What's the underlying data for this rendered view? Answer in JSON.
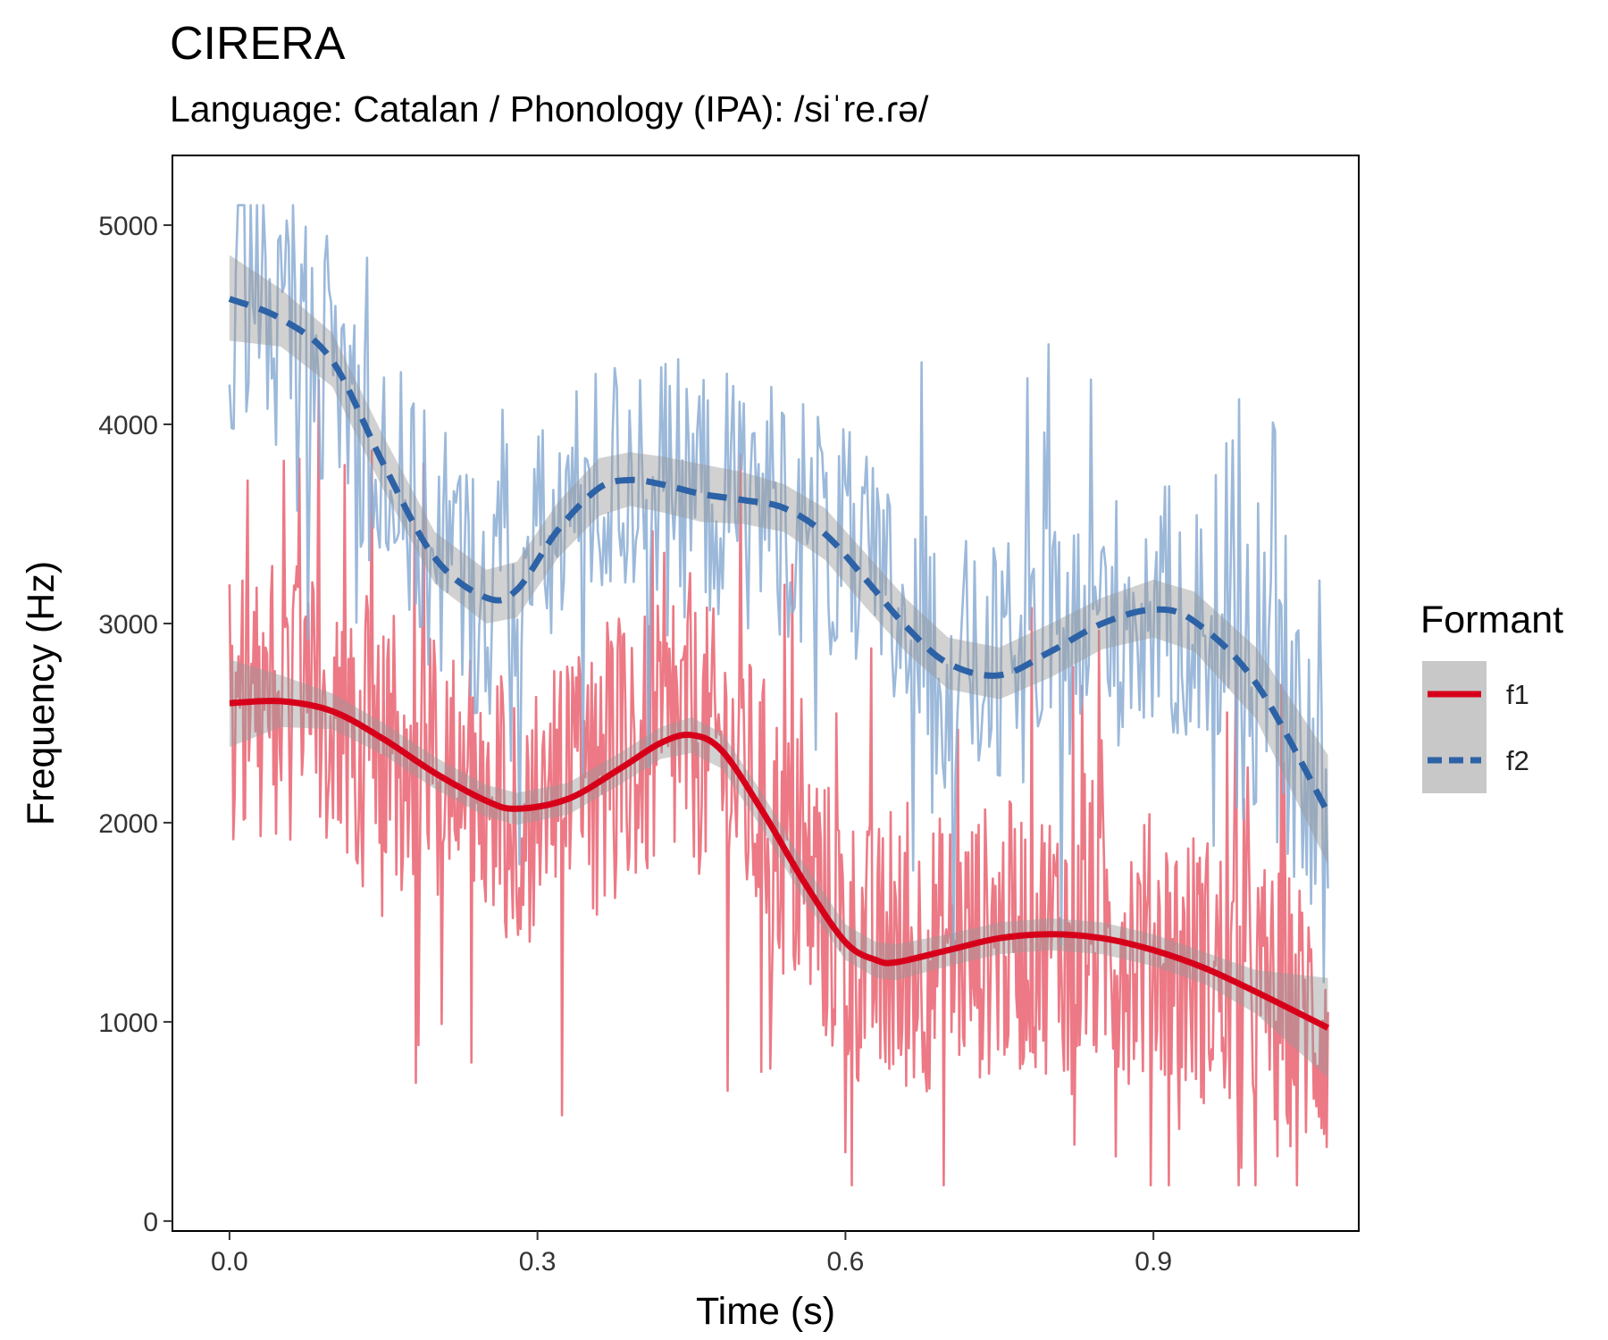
{
  "chart_data": {
    "type": "line",
    "title": "CIRERA",
    "subtitle": "Language: Catalan / Phonology (IPA): /siˈre.ɾə/",
    "xlabel": "Time (s)",
    "ylabel": "Frequency (Hz)",
    "xlim": [
      -0.0556,
      1.1
    ],
    "ylim": [
      -50,
      5350
    ],
    "x_ticks": [
      0.0,
      0.3,
      0.6,
      0.9
    ],
    "x_tick_labels": [
      "0.0",
      "0.3",
      "0.6",
      "0.9"
    ],
    "y_ticks": [
      0,
      1000,
      2000,
      3000,
      4000,
      5000
    ],
    "y_tick_labels": [
      "0",
      "1000",
      "2000",
      "3000",
      "4000",
      "5000"
    ],
    "grid": false,
    "legend": {
      "title": "Formant",
      "position": "right",
      "entries": [
        "f1",
        "f2"
      ]
    },
    "series": [
      {
        "name": "f1",
        "color": "#d7001a",
        "raw_color": "#ea6a78",
        "line_style": "solid",
        "smooth": {
          "x": [
            0.0,
            0.05,
            0.1,
            0.15,
            0.2,
            0.25,
            0.28,
            0.33,
            0.38,
            0.42,
            0.45,
            0.48,
            0.52,
            0.56,
            0.6,
            0.63,
            0.65,
            0.7,
            0.75,
            0.8,
            0.85,
            0.9,
            0.95,
            1.0,
            1.07
          ],
          "y": [
            2600,
            2610,
            2560,
            2420,
            2250,
            2110,
            2070,
            2120,
            2270,
            2400,
            2440,
            2360,
            2050,
            1700,
            1400,
            1310,
            1300,
            1360,
            1420,
            1440,
            1420,
            1360,
            1270,
            1150,
            970
          ]
        },
        "band": {
          "x": [
            0.0,
            0.05,
            0.1,
            0.15,
            0.2,
            0.25,
            0.28,
            0.33,
            0.38,
            0.42,
            0.45,
            0.48,
            0.52,
            0.56,
            0.6,
            0.63,
            0.65,
            0.7,
            0.75,
            0.8,
            0.85,
            0.9,
            0.95,
            1.0,
            1.07
          ],
          "lower": [
            2380,
            2480,
            2470,
            2340,
            2170,
            2030,
            1990,
            2040,
            2190,
            2320,
            2350,
            2270,
            1960,
            1610,
            1310,
            1220,
            1210,
            1280,
            1340,
            1360,
            1340,
            1280,
            1190,
            1040,
            720
          ],
          "upper": [
            2820,
            2740,
            2650,
            2500,
            2330,
            2190,
            2150,
            2200,
            2350,
            2480,
            2530,
            2450,
            2140,
            1790,
            1490,
            1400,
            1390,
            1440,
            1500,
            1520,
            1500,
            1440,
            1350,
            1260,
            1220
          ]
        },
        "raw": {
          "x_start": 0.0,
          "x_end": 1.07,
          "n": 850,
          "spread": 700,
          "min": 180,
          "max": 4450
        }
      },
      {
        "name": "f2",
        "color": "#2d62a6",
        "raw_color": "#8badd3",
        "line_style": "dashed",
        "smooth": {
          "x": [
            0.0,
            0.05,
            0.1,
            0.15,
            0.2,
            0.25,
            0.28,
            0.32,
            0.36,
            0.39,
            0.42,
            0.46,
            0.5,
            0.54,
            0.58,
            0.62,
            0.66,
            0.7,
            0.75,
            0.8,
            0.85,
            0.9,
            0.94,
            1.0,
            1.07
          ],
          "y": [
            4630,
            4530,
            4320,
            3800,
            3330,
            3130,
            3170,
            3470,
            3680,
            3720,
            3700,
            3650,
            3620,
            3580,
            3450,
            3220,
            2980,
            2800,
            2740,
            2860,
            3000,
            3070,
            3010,
            2700,
            2050
          ]
        },
        "band": {
          "x": [
            0.0,
            0.05,
            0.1,
            0.15,
            0.2,
            0.25,
            0.28,
            0.32,
            0.36,
            0.39,
            0.42,
            0.46,
            0.5,
            0.54,
            0.58,
            0.62,
            0.66,
            0.7,
            0.75,
            0.8,
            0.85,
            0.9,
            0.94,
            1.0,
            1.07
          ],
          "lower": [
            4420,
            4390,
            4190,
            3670,
            3200,
            3000,
            3030,
            3330,
            3540,
            3590,
            3560,
            3510,
            3500,
            3460,
            3320,
            3080,
            2850,
            2670,
            2620,
            2730,
            2870,
            2930,
            2860,
            2520,
            1790
          ],
          "upper": [
            4850,
            4680,
            4460,
            3940,
            3460,
            3270,
            3310,
            3610,
            3830,
            3860,
            3840,
            3800,
            3760,
            3700,
            3580,
            3350,
            3120,
            2930,
            2880,
            3000,
            3130,
            3220,
            3160,
            2880,
            2340
          ]
        },
        "raw": {
          "x_start": 0.0,
          "x_end": 1.07,
          "n": 520,
          "spread": 650,
          "min": 1200,
          "max": 5100
        }
      }
    ]
  }
}
